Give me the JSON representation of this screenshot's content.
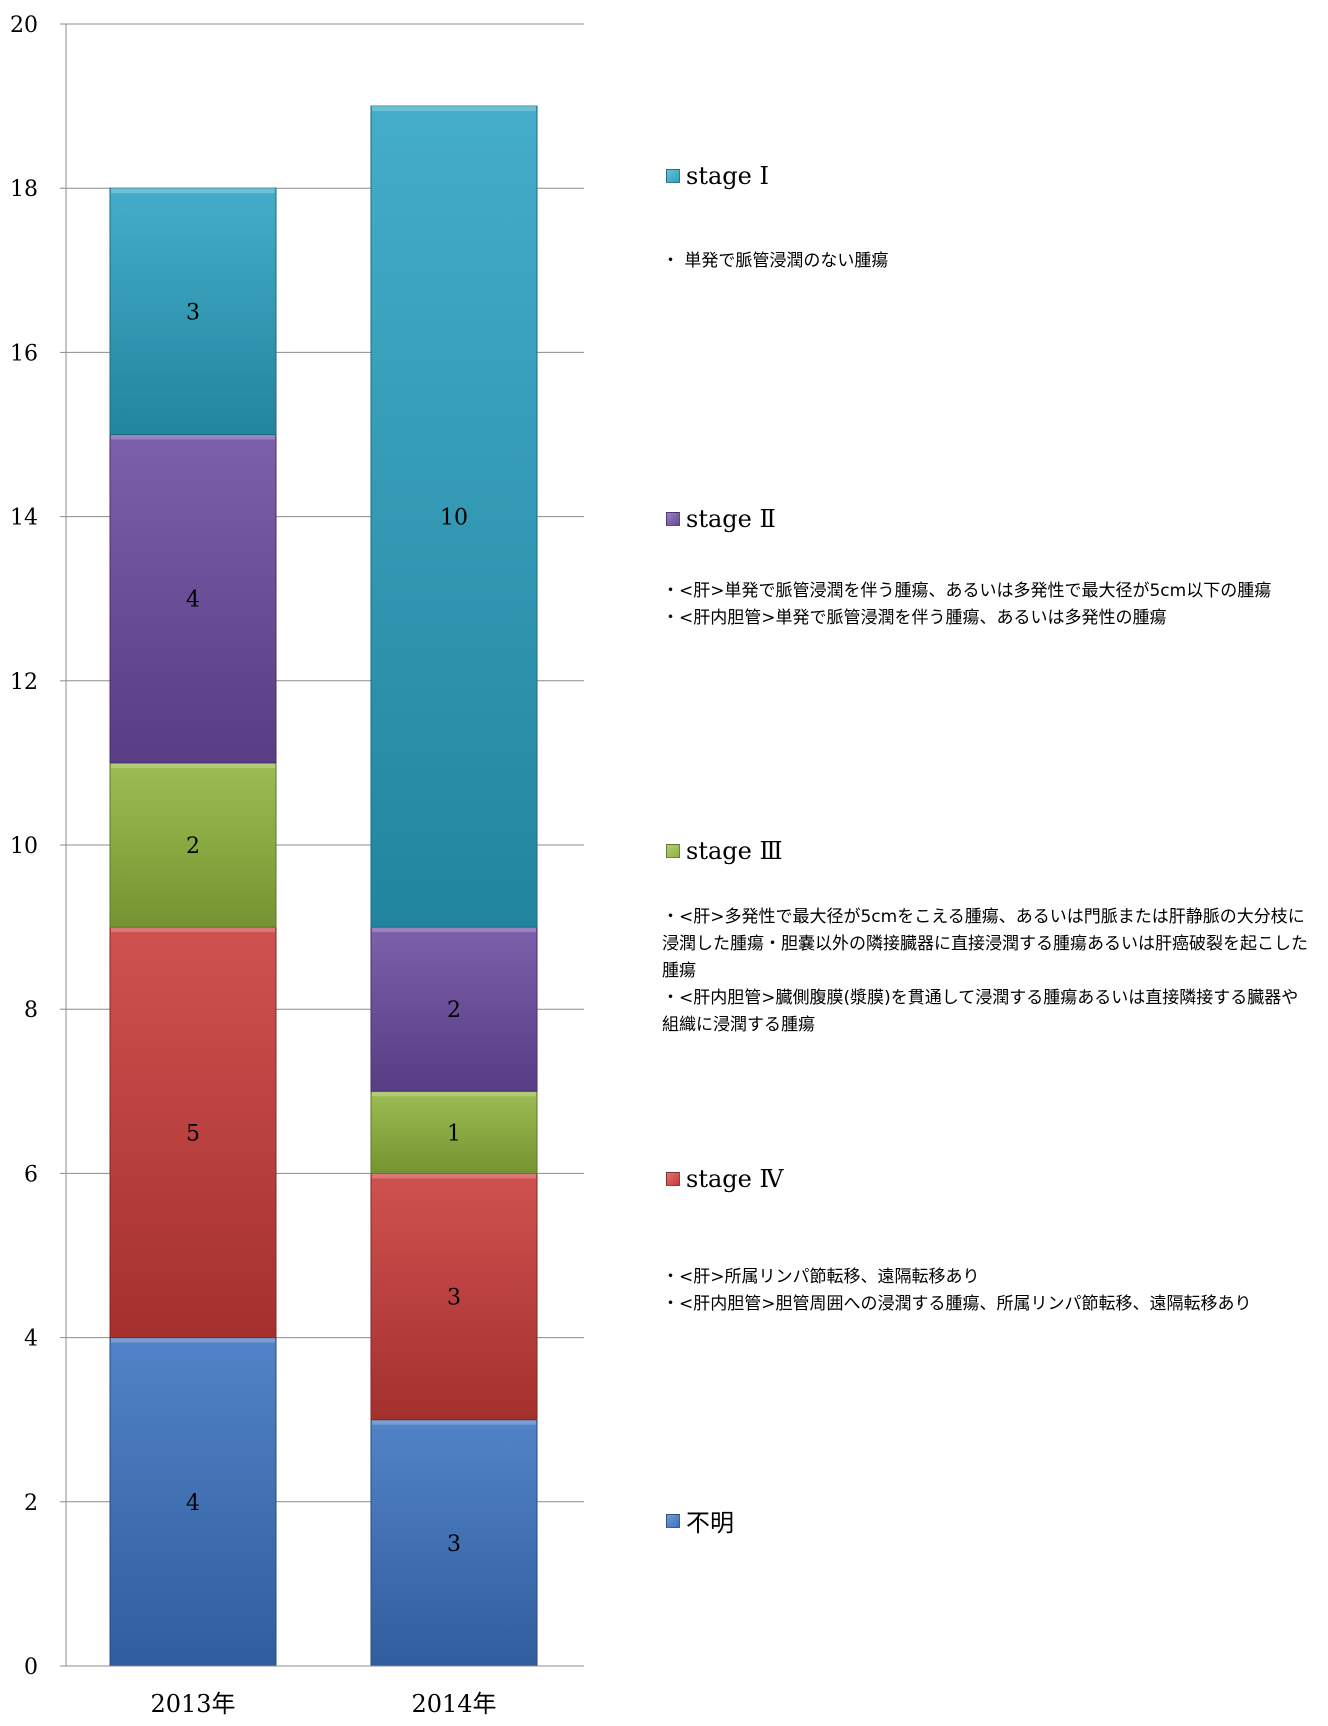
{
  "chart_data": {
    "type": "bar",
    "stacked": true,
    "categories": [
      "2013年",
      "2014年"
    ],
    "series": [
      {
        "name": "不明",
        "values": [
          4,
          3
        ],
        "color": "#3a72c0"
      },
      {
        "name": "stage Ⅳ",
        "values": [
          5,
          3
        ],
        "color": "#c83a38"
      },
      {
        "name": "stage Ⅲ",
        "values": [
          2,
          1
        ],
        "color": "#8fb43c"
      },
      {
        "name": "stage Ⅱ",
        "values": [
          4,
          2
        ],
        "color": "#6a4aa0"
      },
      {
        "name": "stage Ⅰ",
        "values": [
          3,
          10
        ],
        "color": "#2aa2c2"
      }
    ],
    "ylim": [
      0,
      20
    ],
    "yticks": [
      0,
      2,
      4,
      6,
      8,
      10,
      12,
      14,
      16,
      18,
      20
    ],
    "grid": true,
    "legend_position": "right",
    "xlabel": "",
    "ylabel": ""
  },
  "legend": [
    {
      "label": "stage Ⅰ",
      "color": "#2aa2c2",
      "description": "・ 単発で脈管浸潤のない腫瘍"
    },
    {
      "label": "stage Ⅱ",
      "color": "#6a4aa0",
      "description": "・<肝>単発で脈管浸潤を伴う腫瘍、あるいは多発性で最大径が5cm以下の腫瘍\n・<肝内胆管>単発で脈管浸潤を伴う腫瘍、あるいは多発性の腫瘍"
    },
    {
      "label": "stage Ⅲ",
      "color": "#8fb43c",
      "description": "・<肝>多発性で最大径が5cmをこえる腫瘍、あるいは門脈または肝静脈の大分枝に浸潤した腫瘍・胆嚢以外の隣接臓器に直接浸潤する腫瘍あるいは肝癌破裂を起こした腫瘍\n・<肝内胆管>臓側腹膜(漿膜)を貫通して浸潤する腫瘍あるいは直接隣接する臓器や組織に浸潤する腫瘍"
    },
    {
      "label": "stage Ⅳ",
      "color": "#c83a38",
      "description": "・<肝>所属リンパ節転移、遠隔転移あり\n・<肝内胆管>胆管周囲への浸潤する腫瘍、所属リンパ節転移、遠隔転移あり"
    },
    {
      "label": "不明",
      "color": "#3a72c0",
      "description": ""
    }
  ]
}
